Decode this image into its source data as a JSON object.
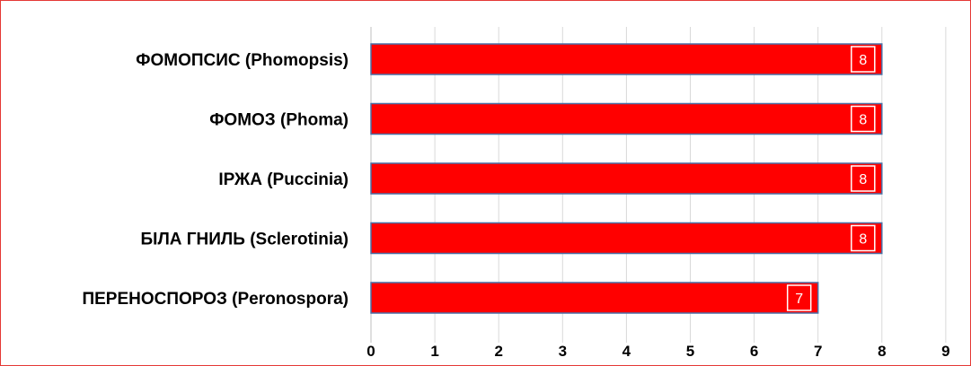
{
  "chart_data": {
    "type": "bar",
    "orientation": "horizontal",
    "categories": [
      "ФОМОПСИС (Phomopsis)",
      "ФОМОЗ (Phoma)",
      "ІРЖА (Puccinia)",
      "БІЛА ГНИЛЬ (Sclerotinia)",
      "ПЕРЕНОСПОРОЗ (Peronospora)"
    ],
    "values": [
      8,
      8,
      8,
      8,
      7
    ],
    "data_labels": [
      "8",
      "8",
      "8",
      "8",
      "7"
    ],
    "xlim": [
      0,
      9
    ],
    "x_ticks": [
      "0",
      "1",
      "2",
      "3",
      "4",
      "5",
      "6",
      "7",
      "8",
      "9"
    ],
    "grid": "vertical",
    "legend": "none",
    "colors": {
      "bar_fill": "#ff0000",
      "bar_stroke": "#4a6fa5",
      "grid": "#d9d9d9",
      "frame": "#e53935"
    }
  }
}
